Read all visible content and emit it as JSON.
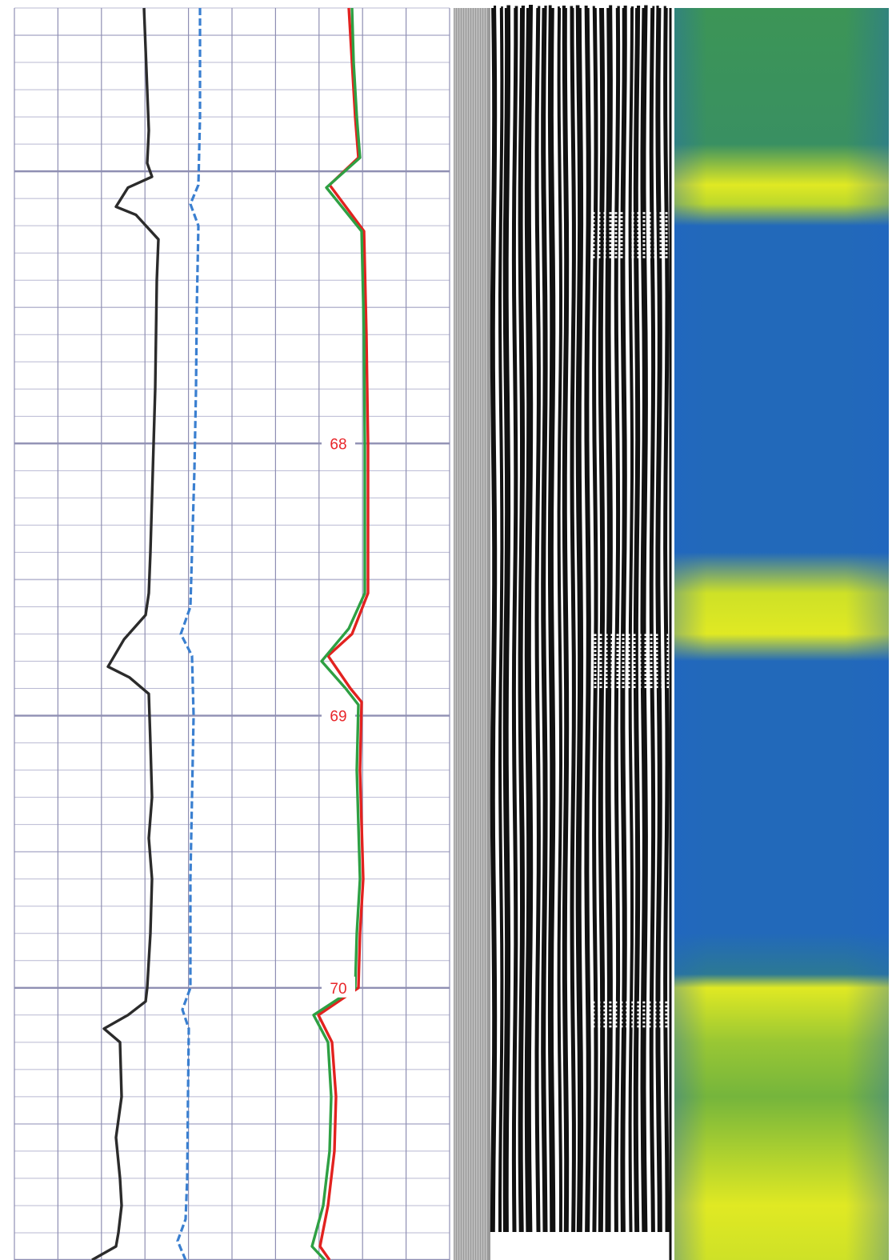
{
  "chart_data": {
    "type": "line",
    "title": "",
    "xlabel": "",
    "ylabel": "",
    "grid": true,
    "depth_axis": {
      "ticks": [
        "68",
        "69",
        "70"
      ],
      "tick_values": [
        68,
        69,
        70
      ],
      "range": [
        66.4,
        71.0
      ]
    },
    "tracks": [
      {
        "kind": "curves",
        "colors": {
          "grid_major": "#8f8fb3",
          "grid_minor": "#b9b9d2",
          "background": "#ffffff"
        },
        "series": [
          {
            "color": "#2b2b2b",
            "style": "solid",
            "points": [
              [
                180,
                66.4
              ],
              [
                182,
                66.55
              ],
              [
                184,
                66.7
              ],
              [
                186,
                66.85
              ],
              [
                184,
                66.97
              ],
              [
                190,
                67.02
              ],
              [
                160,
                67.06
              ],
              [
                145,
                67.13
              ],
              [
                170,
                67.16
              ],
              [
                198,
                67.25
              ],
              [
                196,
                67.4
              ],
              [
                195,
                67.6
              ],
              [
                194,
                67.8
              ],
              [
                192,
                68.0
              ],
              [
                190,
                68.2
              ],
              [
                188,
                68.4
              ],
              [
                186,
                68.55
              ],
              [
                182,
                68.63
              ],
              [
                155,
                68.72
              ],
              [
                135,
                68.82
              ],
              [
                162,
                68.86
              ],
              [
                186,
                68.92
              ],
              [
                188,
                69.1
              ],
              [
                190,
                69.3
              ],
              [
                186,
                69.45
              ],
              [
                190,
                69.6
              ],
              [
                188,
                69.8
              ],
              [
                184,
                70.0
              ],
              [
                182,
                70.05
              ],
              [
                160,
                70.1
              ],
              [
                130,
                70.15
              ],
              [
                150,
                70.2
              ],
              [
                152,
                70.4
              ],
              [
                145,
                70.55
              ],
              [
                150,
                70.7
              ],
              [
                152,
                70.8
              ],
              [
                148,
                70.9
              ],
              [
                145,
                70.95
              ],
              [
                115,
                71.0
              ]
            ]
          },
          {
            "color": "#3a7fd0",
            "style": "dashed",
            "points": [
              [
                250,
                66.4
              ],
              [
                250,
                66.8
              ],
              [
                248,
                67.05
              ],
              [
                238,
                67.12
              ],
              [
                248,
                67.2
              ],
              [
                246,
                67.5
              ],
              [
                245,
                67.8
              ],
              [
                243,
                68.1
              ],
              [
                240,
                68.4
              ],
              [
                238,
                68.6
              ],
              [
                226,
                68.7
              ],
              [
                240,
                68.78
              ],
              [
                242,
                69.0
              ],
              [
                240,
                69.3
              ],
              [
                238,
                69.6
              ],
              [
                238,
                70.0
              ],
              [
                228,
                70.08
              ],
              [
                236,
                70.15
              ],
              [
                235,
                70.4
              ],
              [
                234,
                70.7
              ],
              [
                232,
                70.85
              ],
              [
                222,
                70.93
              ],
              [
                232,
                71.0
              ]
            ]
          },
          {
            "color": "#e2221f",
            "style": "solid",
            "points": [
              [
                436,
                66.4
              ],
              [
                440,
                66.6
              ],
              [
                444,
                66.8
              ],
              [
                448,
                66.95
              ],
              [
                412,
                67.05
              ],
              [
                455,
                67.22
              ],
              [
                458,
                67.6
              ],
              [
                460,
                68.0
              ],
              [
                460,
                68.55
              ],
              [
                440,
                68.7
              ],
              [
                410,
                68.78
              ],
              [
                438,
                68.9
              ],
              [
                452,
                68.95
              ],
              [
                450,
                69.2
              ],
              [
                452,
                69.4
              ],
              [
                454,
                69.6
              ],
              [
                450,
                69.8
              ],
              [
                448,
                70.0
              ],
              [
                398,
                70.1
              ],
              [
                415,
                70.2
              ],
              [
                420,
                70.4
              ],
              [
                418,
                70.6
              ],
              [
                410,
                70.8
              ],
              [
                400,
                70.95
              ],
              [
                412,
                71.0
              ]
            ]
          },
          {
            "color": "#2ea043",
            "style": "solid",
            "points": [
              [
                440,
                66.4
              ],
              [
                442,
                66.6
              ],
              [
                446,
                66.8
              ],
              [
                450,
                66.95
              ],
              [
                408,
                67.06
              ],
              [
                452,
                67.22
              ],
              [
                455,
                67.6
              ],
              [
                456,
                68.0
              ],
              [
                456,
                68.55
              ],
              [
                436,
                68.68
              ],
              [
                402,
                68.8
              ],
              [
                432,
                68.9
              ],
              [
                448,
                68.96
              ],
              [
                446,
                69.2
              ],
              [
                448,
                69.4
              ],
              [
                450,
                69.6
              ],
              [
                446,
                69.8
              ],
              [
                444,
                70.0
              ],
              [
                392,
                70.1
              ],
              [
                410,
                70.2
              ],
              [
                414,
                70.4
              ],
              [
                412,
                70.6
              ],
              [
                404,
                70.8
              ],
              [
                390,
                70.95
              ],
              [
                406,
                71.0
              ]
            ]
          }
        ]
      },
      {
        "kind": "variable-density",
        "colors": {
          "ink": "#111111",
          "paper": "#ffffff",
          "strip": "#9a9a9a"
        }
      },
      {
        "kind": "image",
        "colors": {
          "low": "#1f63c6",
          "mid": "#3f9b49",
          "high": "#f2f21f"
        },
        "bands": [
          [
            66.4,
            0.45
          ],
          [
            66.9,
            0.4
          ],
          [
            67.05,
            0.95
          ],
          [
            67.12,
            0.85
          ],
          [
            67.2,
            0.05
          ],
          [
            68.4,
            0.05
          ],
          [
            68.55,
            0.9
          ],
          [
            68.7,
            0.95
          ],
          [
            68.8,
            0.05
          ],
          [
            69.8,
            0.05
          ],
          [
            69.95,
            0.2
          ],
          [
            70.0,
            0.95
          ],
          [
            70.2,
            0.75
          ],
          [
            70.4,
            0.65
          ],
          [
            70.6,
            0.8
          ],
          [
            70.8,
            0.95
          ],
          [
            71.0,
            0.9
          ]
        ]
      }
    ]
  }
}
